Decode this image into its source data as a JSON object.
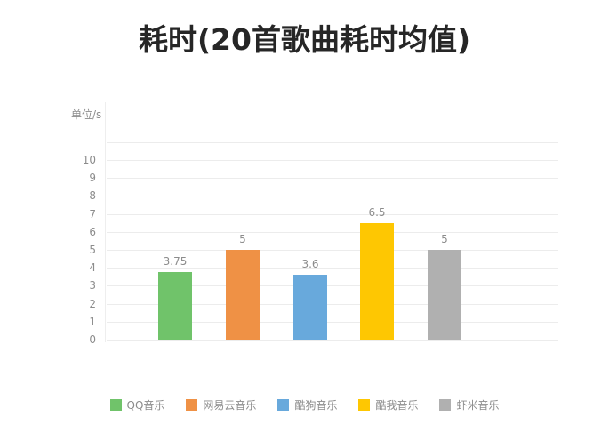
{
  "title": "耗时(20首歌曲耗时均值)",
  "unit_label": "单位/s",
  "chart_data": {
    "type": "bar",
    "title": "耗时(20首歌曲耗时均值)",
    "xlabel": "",
    "ylabel": "单位/s",
    "ylim": [
      0,
      10
    ],
    "yticks": [
      0,
      1,
      2,
      3,
      4,
      5,
      6,
      7,
      8,
      9,
      10
    ],
    "grid": true,
    "legend_position": "bottom",
    "categories": [
      "QQ音乐",
      "网易云音乐",
      "酷狗音乐",
      "酷我音乐",
      "虾米音乐"
    ],
    "values": [
      3.75,
      5,
      3.6,
      6.5,
      5
    ],
    "value_labels": [
      "3.75",
      "5",
      "3.6",
      "6.5",
      "5"
    ],
    "colors": [
      "#70c36a",
      "#ef9145",
      "#68a9dc",
      "#fec702",
      "#b0b0b0"
    ]
  },
  "legend": [
    {
      "label": "QQ音乐",
      "color": "#70c36a"
    },
    {
      "label": "网易云音乐",
      "color": "#ef9145"
    },
    {
      "label": "酷狗音乐",
      "color": "#68a9dc"
    },
    {
      "label": "酷我音乐",
      "color": "#fec702"
    },
    {
      "label": "虾米音乐",
      "color": "#b0b0b0"
    }
  ]
}
